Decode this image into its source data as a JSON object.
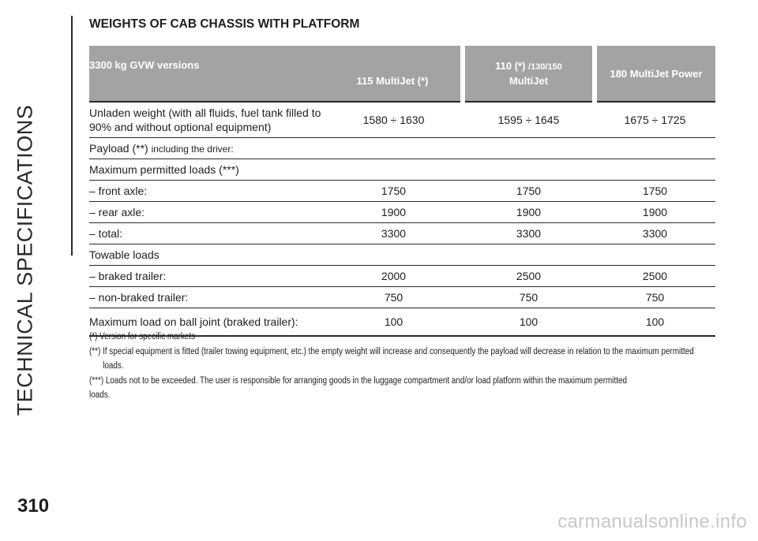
{
  "side_title": "TECHNICAL SPECIFICATIONS",
  "title": "WEIGHTS OF CAB CHASSIS WITH PLATFORM",
  "table": {
    "headers": {
      "col0": "3300 kg GVW versions",
      "col1": "115 MultiJet (*)",
      "col2_a": "110 (*)",
      "col2_b": "/130/150",
      "col2_c": "MultiJet",
      "col3": "180 MultiJet Power"
    },
    "rows": [
      {
        "label_a": "Unladen weight (with all fluids, fuel tank filled to",
        "label_b": "90% and without optional equipment)",
        "v1": "1580 ÷ 1630",
        "v2": "1595 ÷ 1645",
        "v3": "1675 ÷ 1725"
      },
      {
        "label": "Payload (**)",
        "label_small": "including the driver:",
        "v1": "",
        "v2": "",
        "v3": ""
      },
      {
        "label": "Maximum permitted loads (***)",
        "v1": "",
        "v2": "",
        "v3": ""
      },
      {
        "label": "– front axle:",
        "v1": "1750",
        "v2": "1750",
        "v3": "1750"
      },
      {
        "label": "– rear axle:",
        "v1": "1900",
        "v2": "1900",
        "v3": "1900"
      },
      {
        "label": "– total:",
        "v1": "3300",
        "v2": "3300",
        "v3": "3300"
      },
      {
        "label": "Towable loads",
        "v1": "",
        "v2": "",
        "v3": ""
      },
      {
        "label": "– braked trailer:",
        "v1": "2000",
        "v2": "2500",
        "v3": "2500"
      },
      {
        "label": "– non-braked trailer:",
        "v1": "750",
        "v2": "750",
        "v3": "750"
      },
      {
        "label": "Maximum load on ball joint (braked trailer):",
        "v1": "100",
        "v2": "100",
        "v3": "100"
      }
    ]
  },
  "notes": [
    "(*) Version for specific markets",
    "(**) If special equipment is fitted (trailer towing equipment, etc.) the empty weight will increase and consequently the payload will decrease in relation to the maximum permitted loads.",
    "(***) Loads not to be exceeded. The user is responsible for arranging goods in the luggage compartment and/or load platform within the maximum permitted loads."
  ],
  "page_number": "310",
  "watermark": "carmanualsonline.info"
}
